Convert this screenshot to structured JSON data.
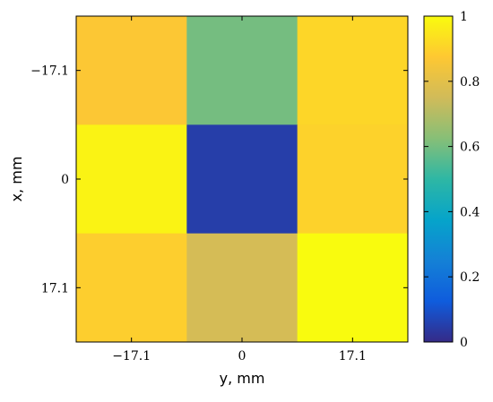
{
  "chart_data": {
    "type": "heatmap",
    "title": "",
    "xlabel": "y, mm",
    "ylabel": "x, mm",
    "x_ticks": [
      "−17.1",
      "0",
      "17.1"
    ],
    "y_ticks": [
      "−17.1",
      "0",
      "17.1"
    ],
    "values": [
      [
        0.87,
        0.6,
        0.91
      ],
      [
        0.98,
        0.05,
        0.9
      ],
      [
        0.89,
        0.76,
        1.0
      ]
    ],
    "colorbar": {
      "range": [
        0,
        1
      ],
      "ticks": [
        "0",
        "0.2",
        "0.4",
        "0.6",
        "0.8",
        "1"
      ],
      "tick_values": [
        0,
        0.2,
        0.4,
        0.6,
        0.8,
        1
      ],
      "colormap": "parula",
      "stops": [
        "#352a87",
        "#0f5cdd",
        "#1481d6",
        "#06a4ca",
        "#2eb7a4",
        "#87bf77",
        "#d1bb59",
        "#fec832",
        "#f9fb0e"
      ]
    }
  }
}
